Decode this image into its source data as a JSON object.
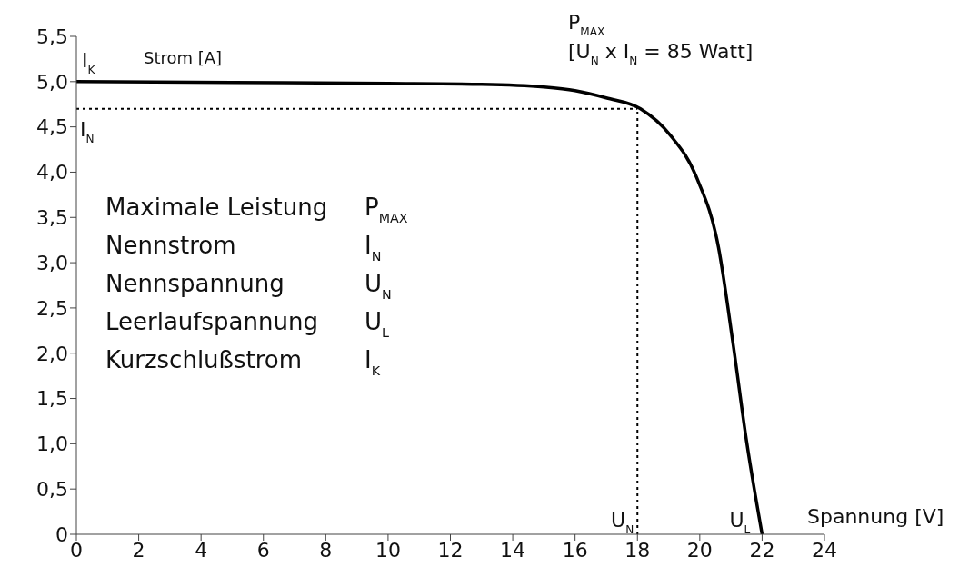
{
  "chart_data": {
    "type": "line",
    "xlabel": "Spannung [V]",
    "ylabel": "Strom [A]",
    "x": [
      0,
      5,
      10,
      13,
      15,
      16,
      17,
      18.1,
      19.05,
      19.9,
      20.6,
      21.07,
      21.5,
      22
    ],
    "series": [
      {
        "color": "#000000",
        "values": [
          5.0,
          4.99,
          4.98,
          4.97,
          4.94,
          4.9,
          4.82,
          4.7,
          4.41,
          3.94,
          3.17,
          2.1,
          1.03,
          0
        ]
      }
    ],
    "xlim": [
      0,
      24
    ],
    "xticks": [
      0,
      2,
      4,
      6,
      8,
      10,
      12,
      14,
      16,
      18,
      20,
      22,
      24
    ],
    "ylim": [
      0,
      5.5
    ],
    "yticks": [
      0,
      {
        "value": 0.5,
        "label": "0,5"
      },
      {
        "value": 1,
        "label": "1,0"
      },
      {
        "value": 1.5,
        "label": "1,5"
      },
      {
        "value": 2,
        "label": "2,0"
      },
      {
        "value": 2.5,
        "label": "2,5"
      },
      {
        "value": 3,
        "label": "3,0"
      },
      {
        "value": 3.5,
        "label": "3,5"
      },
      {
        "value": 4,
        "label": "4,0"
      },
      {
        "value": 4.5,
        "label": "4,5"
      },
      {
        "value": 5,
        "label": "5,0"
      },
      {
        "value": 5.5,
        "label": "5,5"
      }
    ],
    "grid": false,
    "legend": false,
    "marker": "none",
    "line_style": "solid",
    "ref_lines": [
      {
        "axis": "y",
        "value": 4.7,
        "label": "I$_{N}$",
        "line_style": "dotted",
        "color": "#000000"
      },
      {
        "axis": "x",
        "value": 18,
        "label": "U$_{N}$",
        "line_style": "dotted",
        "color": "#000000"
      }
    ],
    "annotations": [
      {
        "text": "I$_{K}$",
        "x": 0,
        "y": 5.0
      },
      {
        "text": "U$_{L}$",
        "x": 22,
        "y": 0
      },
      "P$_{MAX}$",
      "[U$_{N}$ x I$_{N}$ = 85 Watt]",
      "Maximale Leistung",
      "P$_{MAX}$",
      "Nennstrom",
      "I$_{N}$",
      "Nennspannung",
      "U$_{N}$",
      "Leerlaufspannung",
      "U$_{L}$",
      "Kurzschlußstrom",
      "I$_{K}$"
    ]
  }
}
